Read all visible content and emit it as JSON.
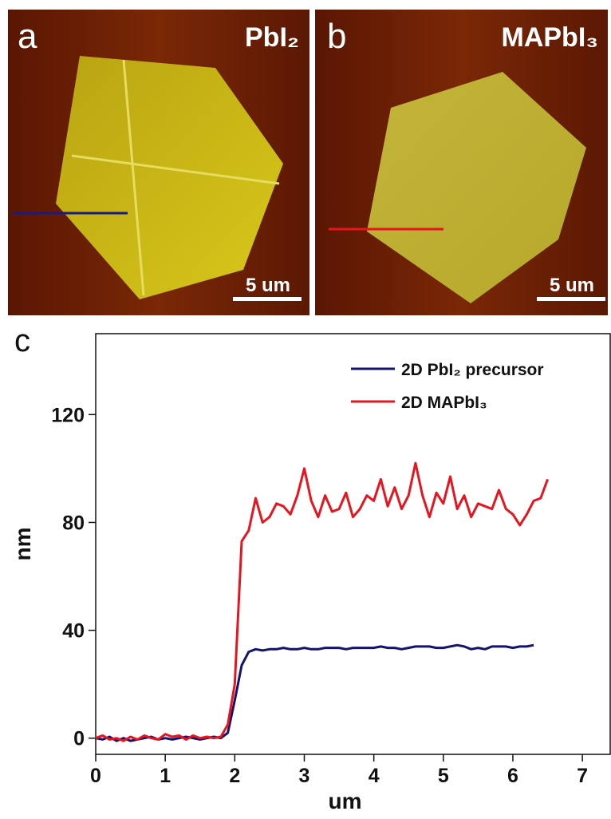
{
  "panels": [
    {
      "label": "a",
      "title": "PbI₂",
      "scale_bar": "5 um"
    },
    {
      "label": "b",
      "title": "MAPbI₃",
      "scale_bar": "5 um"
    }
  ],
  "chart_label": "c",
  "chart_data": {
    "type": "line",
    "x_label": "um",
    "y_label": "nm",
    "xlim": [
      0,
      7.4
    ],
    "ylim": [
      -6,
      150
    ],
    "xticks": [
      0,
      1,
      2,
      3,
      4,
      5,
      6,
      7
    ],
    "yticks": [
      0,
      40,
      80,
      120
    ],
    "legend": "upper right",
    "series": [
      {
        "name": "2D PbI₂ precursor",
        "color": "#14146e",
        "x": [
          0,
          0.1,
          0.2,
          0.3,
          0.4,
          0.5,
          0.6,
          0.7,
          0.8,
          0.9,
          1,
          1.1,
          1.2,
          1.3,
          1.4,
          1.5,
          1.6,
          1.7,
          1.8,
          1.9,
          2,
          2.1,
          2.2,
          2.3,
          2.4,
          2.5,
          2.6,
          2.7,
          2.8,
          2.9,
          3,
          3.1,
          3.2,
          3.3,
          3.4,
          3.5,
          3.6,
          3.7,
          3.8,
          3.9,
          4,
          4.1,
          4.2,
          4.3,
          4.4,
          4.5,
          4.6,
          4.7,
          4.8,
          4.9,
          5,
          5.1,
          5.2,
          5.3,
          5.4,
          5.5,
          5.6,
          5.7,
          5.8,
          5.9,
          6,
          6.1,
          6.2,
          6.3
        ],
        "values": [
          0,
          -0.5,
          0.5,
          -1,
          0,
          -1,
          -0.5,
          0,
          0.5,
          -0.5,
          0,
          -0.5,
          0,
          0.5,
          0,
          -0.5,
          0,
          0.5,
          0,
          2,
          14,
          27,
          32,
          33,
          32.5,
          33,
          33,
          33.5,
          33,
          33,
          33.5,
          33,
          33,
          33.5,
          33.5,
          33.5,
          33,
          33.5,
          33.5,
          33.5,
          33.5,
          34,
          33.5,
          33.5,
          33,
          33.5,
          34,
          34,
          34,
          33.5,
          33.5,
          34,
          34.5,
          34,
          33,
          33.5,
          33,
          34,
          34,
          34,
          33.5,
          34,
          34,
          34.5
        ]
      },
      {
        "name": "2D MAPbI₃",
        "color": "#e8141e",
        "x": [
          0,
          0.1,
          0.2,
          0.3,
          0.4,
          0.5,
          0.6,
          0.7,
          0.8,
          0.9,
          1,
          1.1,
          1.2,
          1.3,
          1.4,
          1.5,
          1.6,
          1.7,
          1.8,
          1.9,
          2,
          2.1,
          2.2,
          2.3,
          2.4,
          2.5,
          2.6,
          2.7,
          2.8,
          2.9,
          3,
          3.1,
          3.2,
          3.3,
          3.4,
          3.5,
          3.6,
          3.7,
          3.8,
          3.9,
          4,
          4.1,
          4.2,
          4.3,
          4.4,
          4.5,
          4.6,
          4.7,
          4.8,
          4.9,
          5,
          5.1,
          5.2,
          5.3,
          5.4,
          5.5,
          5.6,
          5.7,
          5.8,
          5.9,
          6,
          6.1,
          6.2,
          6.3,
          6.4,
          6.5
        ],
        "values": [
          0,
          1,
          -0.5,
          0,
          -1,
          0.5,
          -0.5,
          1,
          0,
          -0.5,
          1.5,
          0.5,
          1,
          -0.5,
          1,
          0,
          0.5,
          0,
          0.5,
          5,
          20,
          73,
          77,
          89,
          80,
          82,
          87,
          86,
          83,
          90,
          100,
          88,
          82,
          90,
          84,
          85,
          91,
          82,
          85,
          90,
          88,
          96,
          86,
          93,
          85,
          90,
          102,
          90,
          82,
          91,
          87,
          97,
          85,
          90,
          82,
          87,
          86,
          85,
          92,
          85,
          83,
          79,
          83,
          88,
          89,
          96
        ]
      }
    ]
  }
}
